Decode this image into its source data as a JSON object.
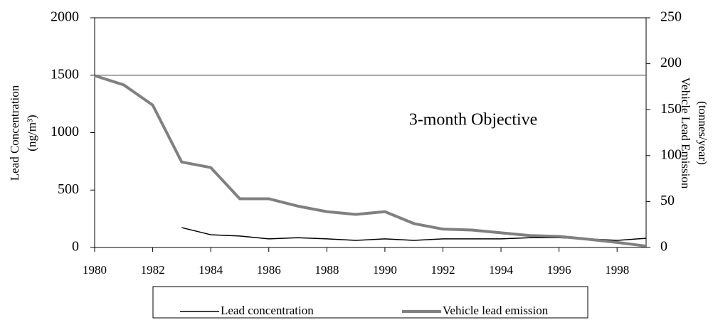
{
  "chart_data": {
    "type": "line",
    "x": [
      1980,
      1981,
      1982,
      1983,
      1984,
      1985,
      1986,
      1987,
      1988,
      1989,
      1990,
      1991,
      1992,
      1993,
      1994,
      1995,
      1996,
      1997,
      1998,
      1999
    ],
    "xlim": [
      1980,
      1999
    ],
    "xticks": [
      1980,
      1982,
      1984,
      1986,
      1988,
      1990,
      1992,
      1994,
      1996,
      1998
    ],
    "ylim": [
      0,
      2000
    ],
    "yticks": [
      0,
      500,
      1000,
      1500,
      2000
    ],
    "y2lim": [
      0,
      250
    ],
    "y2ticks": [
      0,
      50,
      100,
      150,
      200,
      250
    ],
    "y_label": [
      "Lead Concentration",
      "(ng/m³)"
    ],
    "y2_label": [
      "Vehicle Lead Emission",
      "(tonnes/year)"
    ],
    "objective": {
      "label": "3-month Objective",
      "value": 1500,
      "color": "#808080"
    },
    "legend": "bottom",
    "series": [
      {
        "name": "Lead concentration",
        "color": "#000000",
        "width": 1.5,
        "values": [
          null,
          null,
          null,
          173,
          111,
          100,
          75,
          85,
          75,
          62,
          75,
          62,
          75,
          75,
          75,
          85,
          85,
          75,
          62,
          80
        ]
      },
      {
        "name": "Vehicle lead emission",
        "color": "#808080",
        "width": 4,
        "axis": "y2",
        "values": [
          187,
          177,
          155,
          93,
          87,
          53,
          53,
          45,
          39,
          36,
          39,
          26,
          20,
          19,
          16,
          13,
          12,
          9,
          5.5,
          1.5
        ]
      }
    ]
  }
}
